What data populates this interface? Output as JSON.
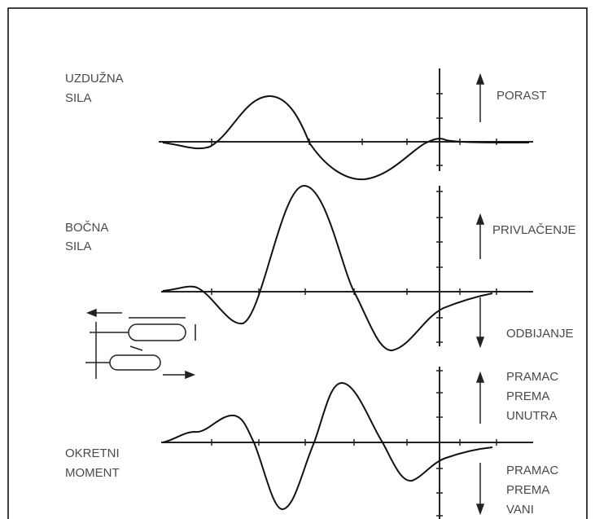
{
  "panels": [
    {
      "label": [
        "UZDUŽNA",
        "SILA"
      ],
      "directions": [
        {
          "lines": [
            "PORAST"
          ]
        }
      ]
    },
    {
      "label": [
        "BOČNA",
        "SILA"
      ],
      "directions": [
        {
          "lines": [
            "PRIVLAČENJE"
          ]
        },
        {
          "lines": [
            "ODBIJANJE"
          ]
        }
      ]
    },
    {
      "label": [
        "OKRETNI",
        "MOMENT"
      ],
      "directions": [
        {
          "lines": [
            "PRAMAC",
            "PREMA",
            "UNUTRA"
          ]
        },
        {
          "lines": [
            "PRAMAC",
            "PREMA",
            "VANI"
          ]
        }
      ]
    }
  ]
}
